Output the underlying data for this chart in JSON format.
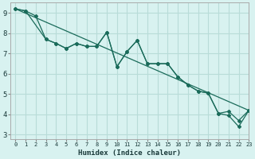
{
  "xlabel": "Humidex (Indice chaleur)",
  "bg_color": "#d8f2f0",
  "grid_color": "#b8dcd8",
  "line_color": "#1a6b5a",
  "xlim": [
    -0.5,
    23
  ],
  "ylim": [
    2.8,
    9.5
  ],
  "yticks": [
    3,
    4,
    5,
    6,
    7,
    8,
    9
  ],
  "xticks": [
    0,
    1,
    2,
    3,
    4,
    5,
    6,
    7,
    8,
    9,
    10,
    11,
    12,
    13,
    14,
    15,
    16,
    17,
    18,
    19,
    20,
    21,
    22,
    23
  ],
  "line1_x": [
    0,
    1,
    2,
    3,
    4,
    5,
    6,
    7,
    8,
    9,
    10,
    11,
    12,
    13,
    14,
    15,
    16,
    17,
    18,
    19,
    20,
    21,
    22,
    23
  ],
  "line1_y": [
    9.2,
    9.1,
    8.85,
    7.7,
    7.5,
    7.25,
    7.5,
    7.35,
    7.35,
    8.05,
    6.35,
    7.1,
    7.65,
    6.5,
    6.5,
    6.5,
    5.85,
    5.45,
    5.15,
    5.05,
    4.05,
    3.95,
    3.4,
    4.2
  ],
  "line2_x": [
    0,
    1,
    3,
    4,
    5,
    6,
    7,
    8,
    9,
    10,
    11,
    12,
    13,
    14,
    15,
    16,
    17,
    18,
    19,
    20,
    21,
    22,
    23
  ],
  "line2_y": [
    9.2,
    9.1,
    7.7,
    7.5,
    7.25,
    7.5,
    7.35,
    7.35,
    8.05,
    6.35,
    7.1,
    7.65,
    6.5,
    6.5,
    6.5,
    5.85,
    5.45,
    5.15,
    5.05,
    4.05,
    4.15,
    3.7,
    4.2
  ],
  "line3_x": [
    0,
    23
  ],
  "line3_y": [
    9.2,
    4.2
  ]
}
